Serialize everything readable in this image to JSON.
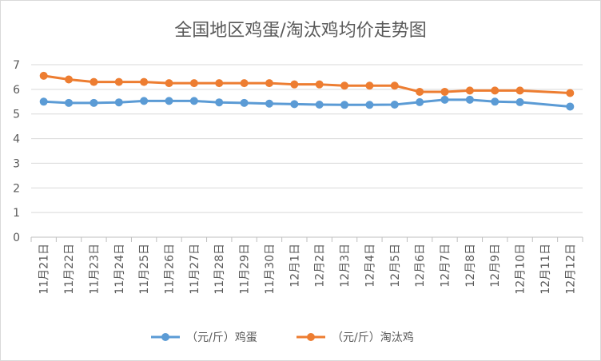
{
  "chart_data": {
    "type": "line",
    "title": "全国地区鸡蛋/淘汰鸡均价走势图",
    "categories": [
      "11月21日",
      "11月22日",
      "11月23日",
      "11月24日",
      "11月25日",
      "11月26日",
      "11月27日",
      "11月28日",
      "11月29日",
      "11月30日",
      "12月1日",
      "12月2日",
      "12月3日",
      "12月4日",
      "12月5日",
      "12月6日",
      "12月7日",
      "12月8日",
      "12月9日",
      "12月10日",
      "12月11日",
      "12月12日"
    ],
    "ylim": [
      0,
      7
    ],
    "yticks": [
      "0",
      "1",
      "2",
      "3",
      "4",
      "5",
      "6",
      "7"
    ],
    "grid": true,
    "legend_position": "bottom",
    "series": [
      {
        "name": "（元/斤）鸡蛋",
        "color": "#5B9BD5",
        "values": [
          5.5,
          5.45,
          5.45,
          5.47,
          5.53,
          5.53,
          5.53,
          5.47,
          5.45,
          5.42,
          5.4,
          5.38,
          5.37,
          5.37,
          5.38,
          5.48,
          5.58,
          5.58,
          5.5,
          5.48,
          null,
          5.3
        ]
      },
      {
        "name": "（元/斤）淘汰鸡",
        "color": "#ED7D31",
        "values": [
          6.55,
          6.4,
          6.3,
          6.3,
          6.3,
          6.25,
          6.25,
          6.25,
          6.25,
          6.25,
          6.2,
          6.2,
          6.15,
          6.15,
          6.15,
          5.9,
          5.9,
          5.95,
          5.95,
          5.95,
          null,
          5.85
        ]
      }
    ]
  }
}
